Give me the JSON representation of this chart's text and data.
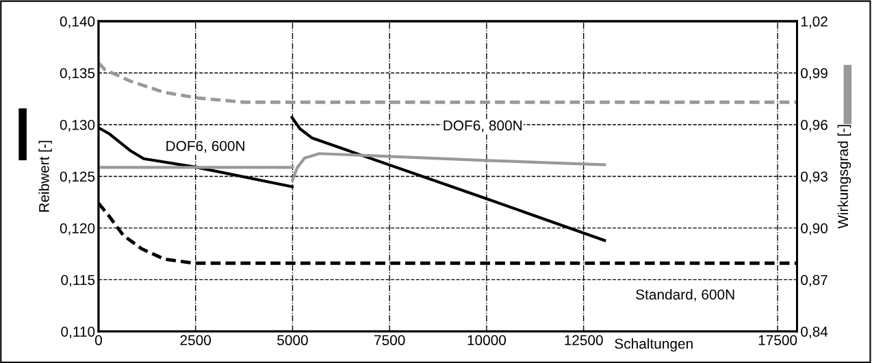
{
  "chart_data": {
    "type": "line",
    "xlabel": "Schaltungen",
    "ylabel": "Reibwert [-]",
    "y2label": "Wirkungsgrad [-]",
    "xlim": [
      0,
      18000
    ],
    "xticks": [
      0,
      2500,
      5000,
      7500,
      10000,
      12500,
      17500
    ],
    "ylim": [
      0.11,
      0.14
    ],
    "yticks": [
      {
        "value": 0.11,
        "label": "0,110"
      },
      {
        "value": 0.115,
        "label": "0,115"
      },
      {
        "value": 0.12,
        "label": "0,120"
      },
      {
        "value": 0.125,
        "label": "0,125"
      },
      {
        "value": 0.13,
        "label": "0,130"
      },
      {
        "value": 0.135,
        "label": "0,135"
      },
      {
        "value": 0.14,
        "label": "0,140"
      }
    ],
    "y2lim": [
      0.84,
      1.02
    ],
    "y2ticks": [
      {
        "value": 0.84,
        "label": "0,84"
      },
      {
        "value": 0.87,
        "label": "0,87"
      },
      {
        "value": 0.9,
        "label": "0,90"
      },
      {
        "value": 0.93,
        "label": "0,93"
      },
      {
        "value": 0.96,
        "label": "0,96"
      },
      {
        "value": 0.99,
        "label": "0,99"
      },
      {
        "value": 1.02,
        "label": "1,02"
      }
    ],
    "grid": true,
    "marker": "none",
    "series": [
      {
        "color": "#000000",
        "line_style": "solid",
        "x": [
          0,
          283,
          812,
          1165,
          2490,
          4990
        ],
        "values": [
          0.1297,
          0.1291,
          0.1275,
          0.1267,
          0.1259,
          0.124
        ]
      },
      {
        "color": "#000000",
        "line_style": "solid",
        "x": [
          4985,
          5190,
          5505,
          10028,
          13040
        ],
        "values": [
          0.1307,
          0.1296,
          0.1287,
          0.1228,
          0.1188
        ]
      },
      {
        "color": "#000000",
        "line_style": "dashed",
        "x": [
          0,
          283,
          636,
          1107,
          1695,
          2460,
          18000
        ],
        "values": [
          0.1224,
          0.1211,
          0.1193,
          0.118,
          0.117,
          0.1166,
          0.1166
        ]
      },
      {
        "color": "#999999",
        "line_style": "solid",
        "axis": "y2",
        "x": [
          0,
          5000
        ],
        "values": [
          0.9352,
          0.9352
        ]
      },
      {
        "color": "#999999",
        "line_style": "solid",
        "axis": "y2",
        "x": [
          5000,
          5120,
          5310,
          5690,
          10028,
          13040
        ],
        "values": [
          0.9279,
          0.935,
          0.9406,
          0.9432,
          0.9392,
          0.9367
        ]
      },
      {
        "color": "#999999",
        "line_style": "dashed",
        "axis": "y2",
        "x": [
          0,
          165,
          812,
          1695,
          2578,
          3757,
          18000
        ],
        "values": [
          0.9958,
          0.9919,
          0.9853,
          0.9787,
          0.9754,
          0.973,
          0.973
        ]
      }
    ],
    "annotations": [
      "DOF6, 600N",
      "DOF6, 800N",
      "Standard, 600N"
    ]
  }
}
